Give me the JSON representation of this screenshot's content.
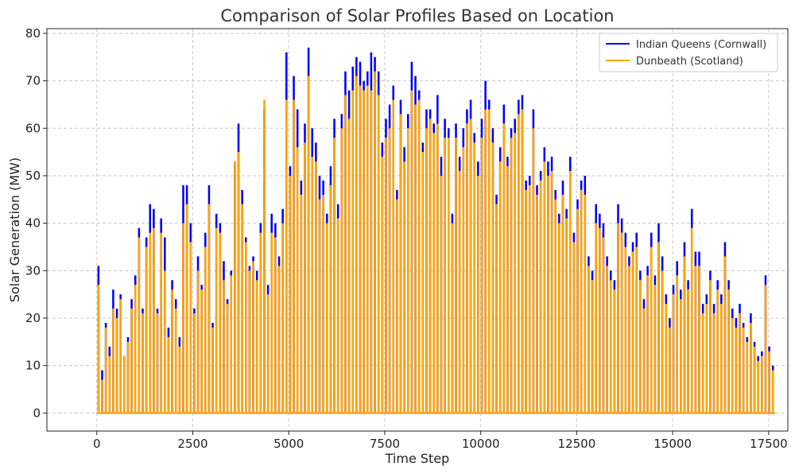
{
  "chart_data": {
    "type": "line",
    "title": "Comparison of Solar Profiles Based on Location",
    "xlabel": "Time Step",
    "ylabel": "Solar Generation (MW)",
    "xlim": [
      -1300,
      18000
    ],
    "ylim": [
      -3.8,
      81
    ],
    "xticks": [
      0,
      2500,
      5000,
      7500,
      10000,
      12500,
      15000,
      17500
    ],
    "xtick_labels": [
      "0",
      "2500",
      "5000",
      "7500",
      "10000",
      "12500",
      "15000",
      "17500"
    ],
    "yticks": [
      0,
      10,
      20,
      30,
      40,
      50,
      60,
      70,
      80
    ],
    "ytick_labels": [
      "0",
      "10",
      "20",
      "30",
      "40",
      "50",
      "60",
      "70",
      "80"
    ],
    "grid": true,
    "legend_position": "top-right",
    "x_step": 96,
    "series": [
      {
        "name": "Indian Queens (Cornwall)",
        "color": "#0000ff",
        "daily_peak_values": [
          31,
          9,
          19,
          14,
          26,
          22,
          25,
          12,
          16,
          24,
          29,
          39,
          22,
          37,
          44,
          43,
          22,
          41,
          37,
          18,
          28,
          24,
          16,
          48,
          48,
          40,
          22,
          33,
          27,
          38,
          48,
          19,
          42,
          40,
          32,
          24,
          30,
          53,
          61,
          47,
          37,
          31,
          33,
          30,
          40,
          64,
          27,
          42,
          40,
          33,
          43,
          76,
          52,
          71,
          64,
          49,
          61,
          77,
          60,
          57,
          50,
          49,
          42,
          52,
          62,
          44,
          63,
          72,
          68,
          73,
          75,
          74,
          70,
          72,
          76,
          75,
          72,
          57,
          62,
          65,
          69,
          47,
          66,
          56,
          63,
          74,
          71,
          68,
          57,
          64,
          64,
          61,
          67,
          54,
          62,
          60,
          42,
          61,
          54,
          60,
          64,
          66,
          59,
          53,
          62,
          70,
          66,
          60,
          46,
          56,
          65,
          54,
          60,
          62,
          66,
          67,
          49,
          50,
          64,
          48,
          51,
          56,
          53,
          54,
          47,
          42,
          49,
          43,
          54,
          38,
          45,
          49,
          50,
          33,
          30,
          44,
          42,
          40,
          33,
          30,
          28,
          44,
          41,
          38,
          33,
          36,
          38,
          30,
          24,
          31,
          38,
          29,
          40,
          33,
          25,
          20,
          27,
          32,
          26,
          36,
          28,
          43,
          34,
          34,
          23,
          25,
          30,
          23,
          28,
          25,
          36,
          28,
          22,
          20,
          23,
          19,
          16,
          21,
          15,
          12,
          13,
          29,
          14,
          10
        ]
      },
      {
        "name": "Dunbeath (Scotland)",
        "color": "#ffa500",
        "daily_peak_values": [
          27,
          7,
          18,
          12,
          22,
          20,
          24,
          12,
          15,
          22,
          27,
          37,
          21,
          35,
          38,
          39,
          21,
          38,
          30,
          16,
          26,
          22,
          14,
          40,
          44,
          36,
          21,
          30,
          26,
          35,
          44,
          18,
          39,
          38,
          28,
          23,
          29,
          53,
          55,
          44,
          36,
          30,
          32,
          28,
          38,
          66,
          25,
          38,
          37,
          31,
          40,
          66,
          50,
          66,
          56,
          46,
          57,
          71,
          54,
          53,
          45,
          46,
          40,
          48,
          58,
          41,
          60,
          67,
          62,
          68,
          71,
          69,
          68,
          69,
          68,
          72,
          67,
          54,
          58,
          60,
          66,
          45,
          63,
          53,
          60,
          68,
          65,
          66,
          55,
          60,
          62,
          59,
          61,
          50,
          58,
          58,
          40,
          58,
          51,
          56,
          61,
          62,
          57,
          50,
          58,
          64,
          64,
          57,
          44,
          53,
          61,
          52,
          58,
          59,
          63,
          64,
          47,
          48,
          60,
          46,
          49,
          53,
          50,
          51,
          45,
          40,
          46,
          41,
          51,
          36,
          43,
          47,
          46,
          31,
          28,
          40,
          39,
          37,
          31,
          28,
          26,
          40,
          38,
          35,
          31,
          34,
          35,
          28,
          22,
          29,
          35,
          27,
          36,
          30,
          23,
          18,
          25,
          29,
          24,
          33,
          26,
          39,
          31,
          31,
          21,
          23,
          28,
          21,
          26,
          23,
          33,
          26,
          20,
          18,
          21,
          18,
          15,
          19,
          14,
          11,
          12,
          27,
          13,
          9
        ]
      }
    ]
  }
}
